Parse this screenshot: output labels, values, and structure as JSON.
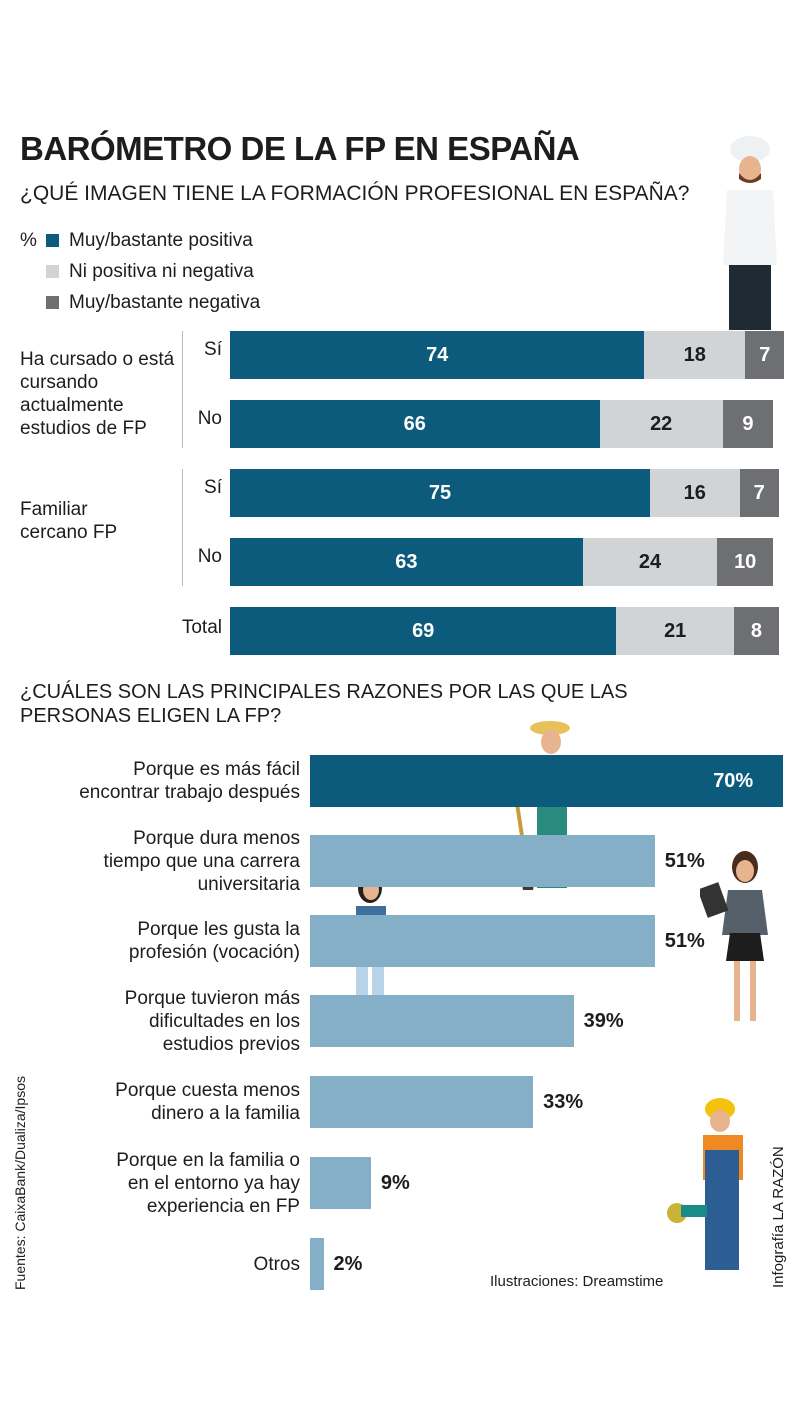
{
  "title": "BARÓMETRO DE LA FP EN ESPAÑA",
  "chart_data": [
    {
      "type": "bar",
      "orientation": "horizontal-stacked",
      "title": "¿QUÉ IMAGEN TIENE LA FORMACIÓN PROFESIONAL EN ESPAÑA?",
      "unit": "%",
      "legend": [
        "Muy/bastante positiva",
        "Ni positiva ni negativa",
        "Muy/bastante negativa"
      ],
      "colors": [
        "#0c5b7d",
        "#d1d4d7",
        "#6e6f72"
      ],
      "groups": [
        {
          "label": "Ha cursado o está cursando actualmente estudios de FP",
          "rows": [
            {
              "label": "Sí",
              "values": [
                74,
                18,
                7
              ]
            },
            {
              "label": "No",
              "values": [
                66,
                22,
                9
              ]
            }
          ]
        },
        {
          "label": "Familiar cercano FP",
          "rows": [
            {
              "label": "Sí",
              "values": [
                75,
                16,
                7
              ]
            },
            {
              "label": "No",
              "values": [
                63,
                24,
                10
              ]
            }
          ]
        },
        {
          "label": "",
          "rows": [
            {
              "label": "Total",
              "values": [
                69,
                21,
                8
              ]
            }
          ]
        }
      ]
    },
    {
      "type": "bar",
      "orientation": "horizontal",
      "title": "¿CUÁLES SON LAS PRINCIPALES RAZONES POR LAS QUE LAS PERSONAS ELIGEN LA FP?",
      "categories": [
        "Porque es más fácil encontrar trabajo después",
        "Porque dura menos tiempo que una carrera universitaria",
        "Porque les gusta la profesión (vocación)",
        "Porque tuvieron más dificultades en los estudios previos",
        "Porque cuesta menos dinero a la familia",
        "Porque en la familia o en el entorno ya hay experiencia en FP",
        "Otros"
      ],
      "label_lines": [
        [
          "Porque es más fácil",
          "encontrar trabajo después"
        ],
        [
          "Porque dura menos",
          "tiempo que una carrera",
          "universitaria"
        ],
        [
          "Porque les gusta la",
          "profesión (vocación)"
        ],
        [
          "Porque tuvieron más",
          "dificultades en los",
          "estudios previos"
        ],
        [
          "Porque cuesta menos",
          "dinero a la familia"
        ],
        [
          "Porque en la familia o",
          "en el entorno ya hay",
          "experiencia en FP"
        ],
        [
          "Otros"
        ]
      ],
      "values": [
        70,
        51,
        51,
        39,
        33,
        9,
        2
      ],
      "value_labels": [
        "70%",
        "51%",
        "51%",
        "39%",
        "33%",
        "9%",
        "2%"
      ],
      "colors": {
        "highlight": "#0c5b7d",
        "default": "#85aec7"
      }
    }
  ],
  "credits": {
    "sources": "Fuentes: CaixaBank/Dualiza/Ipsos",
    "illustrations": "Ilustraciones: Dreamstime",
    "infographic": "Infografía LA RAZÓN"
  }
}
